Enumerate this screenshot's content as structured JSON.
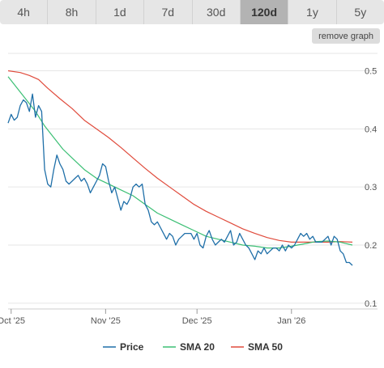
{
  "tabs": [
    {
      "label": "4h",
      "active": false
    },
    {
      "label": "8h",
      "active": false
    },
    {
      "label": "1d",
      "active": false
    },
    {
      "label": "7d",
      "active": false
    },
    {
      "label": "30d",
      "active": false
    },
    {
      "label": "120d",
      "active": true
    },
    {
      "label": "1y",
      "active": false
    },
    {
      "label": "5y",
      "active": false
    }
  ],
  "remove_graph_label": "remove graph",
  "chart_data": {
    "type": "line",
    "title": "",
    "xlabel": "",
    "ylabel": "",
    "x_ticks": [
      {
        "label": "Oct '25",
        "day": 0
      },
      {
        "label": "Nov '25",
        "day": 31
      },
      {
        "label": "Dec '25",
        "day": 61
      },
      {
        "label": "Jan '26",
        "day": 92
      }
    ],
    "y_ticks": [
      0.1,
      0.2,
      0.3,
      0.4,
      0.5
    ],
    "ylim": [
      0.09,
      0.53
    ],
    "xlim": [
      -1,
      112
    ],
    "grid": true,
    "legend_position": "bottom",
    "series": [
      {
        "name": "Price",
        "color": "#1f6fa8",
        "points": [
          [
            -1,
            0.41
          ],
          [
            0,
            0.425
          ],
          [
            1,
            0.415
          ],
          [
            2,
            0.42
          ],
          [
            3,
            0.44
          ],
          [
            4,
            0.45
          ],
          [
            5,
            0.445
          ],
          [
            6,
            0.43
          ],
          [
            7,
            0.46
          ],
          [
            8,
            0.42
          ],
          [
            9,
            0.44
          ],
          [
            10,
            0.43
          ],
          [
            11,
            0.33
          ],
          [
            12,
            0.305
          ],
          [
            13,
            0.3
          ],
          [
            14,
            0.33
          ],
          [
            15,
            0.355
          ],
          [
            16,
            0.34
          ],
          [
            17,
            0.33
          ],
          [
            18,
            0.31
          ],
          [
            19,
            0.305
          ],
          [
            20,
            0.31
          ],
          [
            21,
            0.315
          ],
          [
            22,
            0.32
          ],
          [
            23,
            0.31
          ],
          [
            24,
            0.315
          ],
          [
            25,
            0.305
          ],
          [
            26,
            0.29
          ],
          [
            27,
            0.3
          ],
          [
            28,
            0.31
          ],
          [
            29,
            0.32
          ],
          [
            30,
            0.34
          ],
          [
            31,
            0.335
          ],
          [
            32,
            0.31
          ],
          [
            33,
            0.29
          ],
          [
            34,
            0.3
          ],
          [
            35,
            0.28
          ],
          [
            36,
            0.26
          ],
          [
            37,
            0.275
          ],
          [
            38,
            0.27
          ],
          [
            39,
            0.28
          ],
          [
            40,
            0.3
          ],
          [
            41,
            0.305
          ],
          [
            42,
            0.3
          ],
          [
            43,
            0.305
          ],
          [
            44,
            0.27
          ],
          [
            45,
            0.26
          ],
          [
            46,
            0.24
          ],
          [
            47,
            0.235
          ],
          [
            48,
            0.24
          ],
          [
            49,
            0.23
          ],
          [
            50,
            0.22
          ],
          [
            51,
            0.21
          ],
          [
            52,
            0.22
          ],
          [
            53,
            0.215
          ],
          [
            54,
            0.2
          ],
          [
            55,
            0.21
          ],
          [
            56,
            0.215
          ],
          [
            57,
            0.22
          ],
          [
            58,
            0.22
          ],
          [
            59,
            0.22
          ],
          [
            60,
            0.21
          ],
          [
            61,
            0.22
          ],
          [
            62,
            0.2
          ],
          [
            63,
            0.195
          ],
          [
            64,
            0.215
          ],
          [
            65,
            0.225
          ],
          [
            66,
            0.21
          ],
          [
            67,
            0.2
          ],
          [
            68,
            0.205
          ],
          [
            69,
            0.21
          ],
          [
            70,
            0.205
          ],
          [
            71,
            0.215
          ],
          [
            72,
            0.225
          ],
          [
            73,
            0.2
          ],
          [
            74,
            0.205
          ],
          [
            75,
            0.22
          ],
          [
            76,
            0.21
          ],
          [
            77,
            0.2
          ],
          [
            78,
            0.195
          ],
          [
            79,
            0.185
          ],
          [
            80,
            0.175
          ],
          [
            81,
            0.19
          ],
          [
            82,
            0.185
          ],
          [
            83,
            0.195
          ],
          [
            84,
            0.185
          ],
          [
            85,
            0.19
          ],
          [
            86,
            0.195
          ],
          [
            87,
            0.195
          ],
          [
            88,
            0.19
          ],
          [
            89,
            0.2
          ],
          [
            90,
            0.19
          ],
          [
            91,
            0.2
          ],
          [
            92,
            0.195
          ],
          [
            93,
            0.2
          ],
          [
            94,
            0.21
          ],
          [
            95,
            0.22
          ],
          [
            96,
            0.215
          ],
          [
            97,
            0.22
          ],
          [
            98,
            0.21
          ],
          [
            99,
            0.215
          ],
          [
            100,
            0.205
          ],
          [
            101,
            0.205
          ],
          [
            102,
            0.205
          ],
          [
            103,
            0.21
          ],
          [
            104,
            0.215
          ],
          [
            105,
            0.2
          ],
          [
            106,
            0.215
          ],
          [
            107,
            0.21
          ],
          [
            108,
            0.19
          ],
          [
            109,
            0.185
          ],
          [
            110,
            0.17
          ],
          [
            111,
            0.17
          ],
          [
            112,
            0.165
          ]
        ]
      },
      {
        "name": "SMA 20",
        "color": "#3bbf74",
        "points": [
          [
            -1,
            0.49
          ],
          [
            2,
            0.47
          ],
          [
            5,
            0.45
          ],
          [
            8,
            0.43
          ],
          [
            11,
            0.405
          ],
          [
            14,
            0.385
          ],
          [
            17,
            0.365
          ],
          [
            20,
            0.35
          ],
          [
            24,
            0.33
          ],
          [
            28,
            0.315
          ],
          [
            32,
            0.305
          ],
          [
            36,
            0.295
          ],
          [
            40,
            0.285
          ],
          [
            44,
            0.27
          ],
          [
            48,
            0.255
          ],
          [
            52,
            0.245
          ],
          [
            56,
            0.235
          ],
          [
            60,
            0.225
          ],
          [
            64,
            0.215
          ],
          [
            68,
            0.21
          ],
          [
            72,
            0.205
          ],
          [
            76,
            0.2
          ],
          [
            80,
            0.198
          ],
          [
            84,
            0.195
          ],
          [
            88,
            0.195
          ],
          [
            92,
            0.198
          ],
          [
            96,
            0.202
          ],
          [
            100,
            0.206
          ],
          [
            104,
            0.207
          ],
          [
            108,
            0.205
          ],
          [
            112,
            0.2
          ]
        ]
      },
      {
        "name": "SMA 50",
        "color": "#e04b3c",
        "points": [
          [
            -1,
            0.5
          ],
          [
            3,
            0.497
          ],
          [
            6,
            0.492
          ],
          [
            9,
            0.485
          ],
          [
            12,
            0.47
          ],
          [
            16,
            0.452
          ],
          [
            20,
            0.435
          ],
          [
            24,
            0.415
          ],
          [
            28,
            0.4
          ],
          [
            32,
            0.385
          ],
          [
            36,
            0.368
          ],
          [
            40,
            0.35
          ],
          [
            44,
            0.332
          ],
          [
            48,
            0.315
          ],
          [
            52,
            0.3
          ],
          [
            56,
            0.285
          ],
          [
            60,
            0.27
          ],
          [
            64,
            0.258
          ],
          [
            68,
            0.248
          ],
          [
            72,
            0.238
          ],
          [
            76,
            0.228
          ],
          [
            80,
            0.22
          ],
          [
            84,
            0.213
          ],
          [
            88,
            0.208
          ],
          [
            92,
            0.205
          ],
          [
            96,
            0.205
          ],
          [
            100,
            0.205
          ],
          [
            104,
            0.205
          ],
          [
            108,
            0.206
          ],
          [
            112,
            0.205
          ]
        ]
      }
    ]
  }
}
